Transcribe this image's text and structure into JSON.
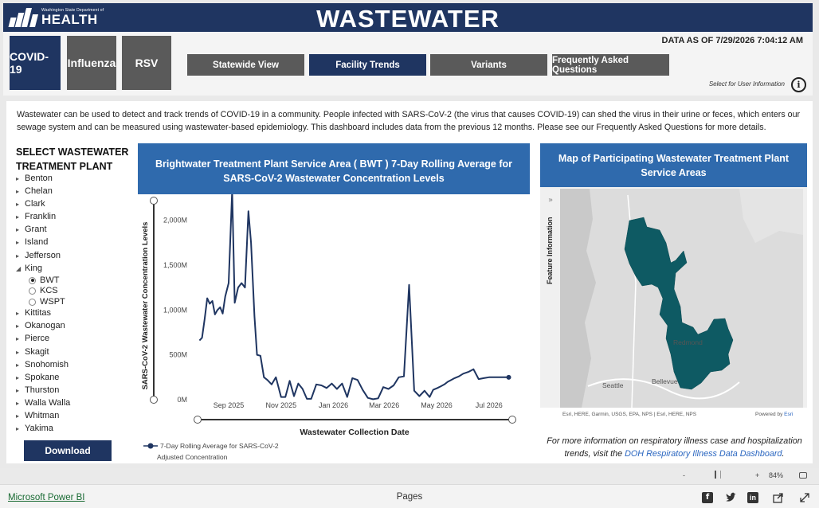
{
  "banner": {
    "logo_small": "Washington State Department of",
    "logo_big": "HEALTH",
    "title": "WASTEWATER"
  },
  "header": {
    "disease_tabs": [
      {
        "label": "COVID-19",
        "color": "#1f3561",
        "active": true
      },
      {
        "label": "Influenza",
        "color": "#5a5a5a",
        "active": false
      },
      {
        "label": "RSV",
        "color": "#5a5a5a",
        "active": false
      }
    ],
    "nav_tabs": [
      {
        "label": "Statewide View",
        "color": "#5a5a5a",
        "active": false
      },
      {
        "label": "Facility Trends",
        "color": "#1f3561",
        "active": true
      },
      {
        "label": "Variants",
        "color": "#5a5a5a",
        "active": false
      },
      {
        "label": "Frequently Asked Questions",
        "color": "#5a5a5a",
        "active": false
      }
    ],
    "data_as_of": "DATA AS OF 7/29/2026 7:04:12 AM",
    "user_info": "Select for User Information",
    "info_icon": "i"
  },
  "intro_text": "Wastewater can be used to detect and track trends of COVID-19 in a community. People infected with SARS-CoV-2 (the virus that causes COVID-19) can shed the virus in their urine or feces, which enters our sewage system and can be measured using wastewater-based epidemiology. This dashboard includes data from the previous 12 months. Please see our Frequently Asked Questions for more details.",
  "sidebar": {
    "title_line1": "SELECT WASTEWATER",
    "title_line2": "TREATMENT PLANT",
    "counties": [
      "Benton",
      "Chelan",
      "Clark",
      "Franklin",
      "Grant",
      "Island",
      "Jefferson",
      "King",
      "Kittitas",
      "Okanogan",
      "Pierce",
      "Skagit",
      "Snohomish",
      "Spokane",
      "Thurston",
      "Walla Walla",
      "Whitman",
      "Yakima"
    ],
    "expanded_county": "King",
    "king_plants": [
      {
        "label": "BWT",
        "selected": true
      },
      {
        "label": "KCS",
        "selected": false
      },
      {
        "label": "WSPT",
        "selected": false
      }
    ],
    "download_label": "Download"
  },
  "chart_title": "Brightwater Treatment Plant Service Area ( BWT ) 7-Day Rolling Average for SARS-CoV-2 Wastewater Concentration Levels",
  "chart_data": {
    "type": "line",
    "title": "Brightwater Treatment Plant Service Area ( BWT ) 7-Day Rolling Average for SARS-CoV-2 Wastewater Concentration Levels",
    "xlabel": "Wastewater Collection Date",
    "ylabel": "SARS-CoV-2 Wastewater Concentration Levels",
    "x_ticks": [
      "Sep 2025",
      "Nov 2025",
      "Jan 2026",
      "Mar 2026",
      "May 2026",
      "Jul 2026"
    ],
    "y_ticks": [
      "0M",
      "500M",
      "1,000M",
      "1,500M",
      "2,000M"
    ],
    "ylim": [
      0,
      2200
    ],
    "legend": "7-Day Rolling Average for SARS-CoV-2 Adjusted Concentration",
    "series_color": "#1f3561",
    "series": [
      {
        "name": "7-Day Rolling Average for SARS-CoV-2 Adjusted Concentration",
        "x": [
          "2025-07-29",
          "2025-08-01",
          "2025-08-04",
          "2025-08-07",
          "2025-08-10",
          "2025-08-13",
          "2025-08-16",
          "2025-08-19",
          "2025-08-22",
          "2025-08-25",
          "2025-08-28",
          "2025-09-01",
          "2025-09-05",
          "2025-09-08",
          "2025-09-12",
          "2025-09-16",
          "2025-09-20",
          "2025-09-24",
          "2025-09-27",
          "2025-10-01",
          "2025-10-04",
          "2025-10-08",
          "2025-10-12",
          "2025-10-16",
          "2025-10-21",
          "2025-10-26",
          "2025-11-01",
          "2025-11-06",
          "2025-11-11",
          "2025-11-16",
          "2025-11-21",
          "2025-11-26",
          "2025-12-01",
          "2025-12-06",
          "2025-12-12",
          "2025-12-18",
          "2025-12-24",
          "2025-12-30",
          "2026-01-05",
          "2026-01-11",
          "2026-01-17",
          "2026-01-23",
          "2026-01-29",
          "2026-02-04",
          "2026-02-10",
          "2026-02-16",
          "2026-02-22",
          "2026-02-28",
          "2026-03-06",
          "2026-03-12",
          "2026-03-18",
          "2026-03-24",
          "2026-03-30",
          "2026-04-05",
          "2026-04-11",
          "2026-04-17",
          "2026-04-23",
          "2026-04-27",
          "2026-05-02",
          "2026-05-06",
          "2026-05-10",
          "2026-05-14",
          "2026-05-18",
          "2026-05-22",
          "2026-05-27",
          "2026-06-01",
          "2026-06-07",
          "2026-06-13",
          "2026-06-19",
          "2026-06-25",
          "2026-07-01",
          "2026-07-07",
          "2026-07-13",
          "2026-07-17",
          "2026-07-21",
          "2026-07-24"
        ],
        "values": [
          660,
          690,
          900,
          1130,
          1070,
          1100,
          950,
          1000,
          1030,
          960,
          1150,
          1300,
          2330,
          1080,
          1250,
          1300,
          1250,
          2100,
          1750,
          930,
          500,
          490,
          250,
          220,
          170,
          250,
          30,
          30,
          210,
          40,
          180,
          120,
          10,
          10,
          170,
          160,
          130,
          180,
          120,
          180,
          30,
          240,
          220,
          110,
          20,
          5,
          15,
          140,
          120,
          160,
          250,
          260,
          1280,
          100,
          40,
          100,
          30,
          110,
          130,
          150,
          170,
          200,
          220,
          240,
          260,
          290,
          310,
          340,
          230,
          240,
          250,
          250,
          250,
          250,
          250,
          250
        ]
      }
    ]
  },
  "map": {
    "title": "Map of Participating Wastewater Treatment Plant Service Areas",
    "feature_info_label": "Feature Information",
    "places": [
      "Seattle",
      "Bellevue",
      "Redmond"
    ],
    "attribution": "Esri, HERE, Garmin, USGS, EPA, NPS | Esri, HERE, NPS",
    "powered_by": "Powered by",
    "powered_by_link": "Esri",
    "service_area_color": "#0e5a63"
  },
  "more_info": {
    "text_before": "For more information on respiratory illness case and hospitalization trends, visit the ",
    "link": "DOH Respiratory Illness Data Dashboard",
    "text_after": "."
  },
  "zoom": {
    "minus": "-",
    "plus": "+",
    "level": "84%"
  },
  "footer": {
    "powerbi_link": "Microsoft Power BI",
    "pages": "Pages"
  }
}
